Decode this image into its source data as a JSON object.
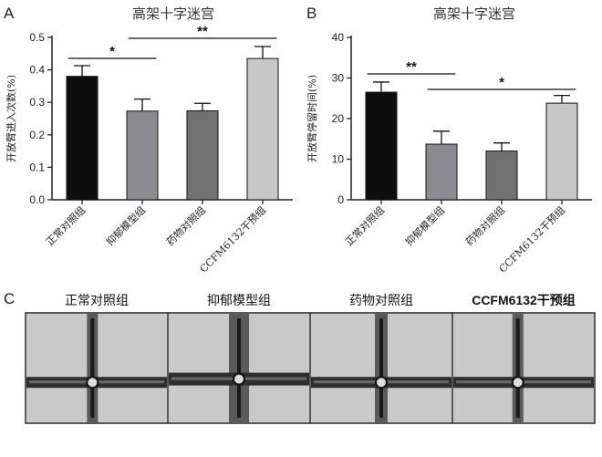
{
  "panels": {
    "a": "A",
    "b": "B",
    "c": "C"
  },
  "colors": {
    "bar_fills": [
      "#0d0d0d",
      "#8a8a8f",
      "#727272",
      "#c8c8c8"
    ],
    "maze_bg": "#c9c9c9",
    "maze_arm": "#5a5a5a"
  },
  "chart_data": [
    {
      "type": "bar",
      "title": "高架十字迷宫",
      "ylabel": "开放臂进入次数(%)",
      "xlabel": "",
      "categories": [
        "正常对照组",
        "抑郁模型组",
        "药物对照组",
        "CCFM6132干预组"
      ],
      "values": [
        0.38,
        0.273,
        0.274,
        0.435
      ],
      "errors": [
        0.033,
        0.037,
        0.023,
        0.037
      ],
      "ylim": [
        0,
        0.5
      ],
      "yticks": [
        "0.0",
        "0.1",
        "0.2",
        "0.3",
        "0.4",
        "0.5"
      ],
      "significance": [
        {
          "from": 0,
          "to": 1,
          "label": "*"
        },
        {
          "from": 1,
          "to": 3,
          "label": "**"
        }
      ]
    },
    {
      "type": "bar",
      "title": "高架十字迷宫",
      "ylabel": "开放臂停留时间(%)",
      "xlabel": "",
      "categories": [
        "正常对照组",
        "抑郁模型组",
        "药物对照组",
        "CCFM6132干预组"
      ],
      "values": [
        26.5,
        13.7,
        12.0,
        23.8
      ],
      "errors": [
        2.5,
        3.2,
        2.0,
        1.9
      ],
      "ylim": [
        0,
        40
      ],
      "yticks": [
        "0",
        "10",
        "20",
        "30",
        "40"
      ],
      "significance": [
        {
          "from": 0,
          "to": 1,
          "label": "**"
        },
        {
          "from": 1,
          "to": 3,
          "label": "*"
        }
      ]
    }
  ],
  "maze_titles": [
    "正常对照组",
    "抑郁模型组",
    "药物对照组",
    "CCFM6132干预组"
  ]
}
